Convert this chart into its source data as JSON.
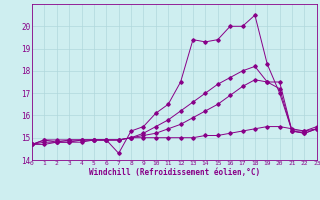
{
  "xlabel": "Windchill (Refroidissement éolien,°C)",
  "background_color": "#ceeef0",
  "grid_color": "#b0d8dc",
  "line_color": "#880088",
  "xlim": [
    0,
    23
  ],
  "ylim": [
    14,
    21
  ],
  "yticks": [
    14,
    15,
    16,
    17,
    18,
    19,
    20
  ],
  "xticks": [
    0,
    1,
    2,
    3,
    4,
    5,
    6,
    7,
    8,
    9,
    10,
    11,
    12,
    13,
    14,
    15,
    16,
    17,
    18,
    19,
    20,
    21,
    22,
    23
  ],
  "series1_x": [
    0,
    1,
    2,
    3,
    4,
    5,
    6,
    7,
    8,
    9,
    10,
    11,
    12,
    13,
    14,
    15,
    16,
    17,
    18,
    19,
    20,
    21,
    22,
    23
  ],
  "series1_y": [
    14.7,
    14.9,
    14.8,
    14.9,
    14.9,
    14.9,
    14.9,
    14.3,
    15.3,
    15.5,
    16.1,
    16.5,
    17.5,
    19.4,
    19.3,
    19.4,
    20.0,
    20.0,
    20.5,
    18.3,
    17.0,
    15.3,
    15.3,
    15.5
  ],
  "series2_x": [
    0,
    1,
    2,
    3,
    4,
    5,
    6,
    7,
    8,
    9,
    10,
    11,
    12,
    13,
    14,
    15,
    16,
    17,
    18,
    19,
    20,
    21,
    22,
    23
  ],
  "series2_y": [
    14.7,
    14.9,
    14.9,
    14.9,
    14.9,
    14.9,
    14.9,
    14.9,
    15.0,
    15.0,
    15.0,
    15.0,
    15.0,
    15.0,
    15.1,
    15.1,
    15.2,
    15.3,
    15.4,
    15.5,
    15.5,
    15.4,
    15.3,
    15.4
  ],
  "series3_x": [
    0,
    1,
    2,
    3,
    4,
    5,
    6,
    7,
    8,
    9,
    10,
    11,
    12,
    13,
    14,
    15,
    16,
    17,
    18,
    19,
    20,
    21,
    22,
    23
  ],
  "series3_y": [
    14.7,
    14.8,
    14.8,
    14.8,
    14.8,
    14.9,
    14.9,
    14.9,
    15.0,
    15.1,
    15.2,
    15.4,
    15.6,
    15.9,
    16.2,
    16.5,
    16.9,
    17.3,
    17.6,
    17.5,
    17.5,
    15.3,
    15.2,
    15.4
  ],
  "series4_x": [
    0,
    1,
    2,
    3,
    4,
    5,
    6,
    7,
    8,
    9,
    10,
    11,
    12,
    13,
    14,
    15,
    16,
    17,
    18,
    19,
    20,
    21,
    22,
    23
  ],
  "series4_y": [
    14.7,
    14.7,
    14.8,
    14.8,
    14.9,
    14.9,
    14.9,
    14.9,
    15.0,
    15.2,
    15.5,
    15.8,
    16.2,
    16.6,
    17.0,
    17.4,
    17.7,
    18.0,
    18.2,
    17.5,
    17.2,
    15.3,
    15.2,
    15.4
  ]
}
